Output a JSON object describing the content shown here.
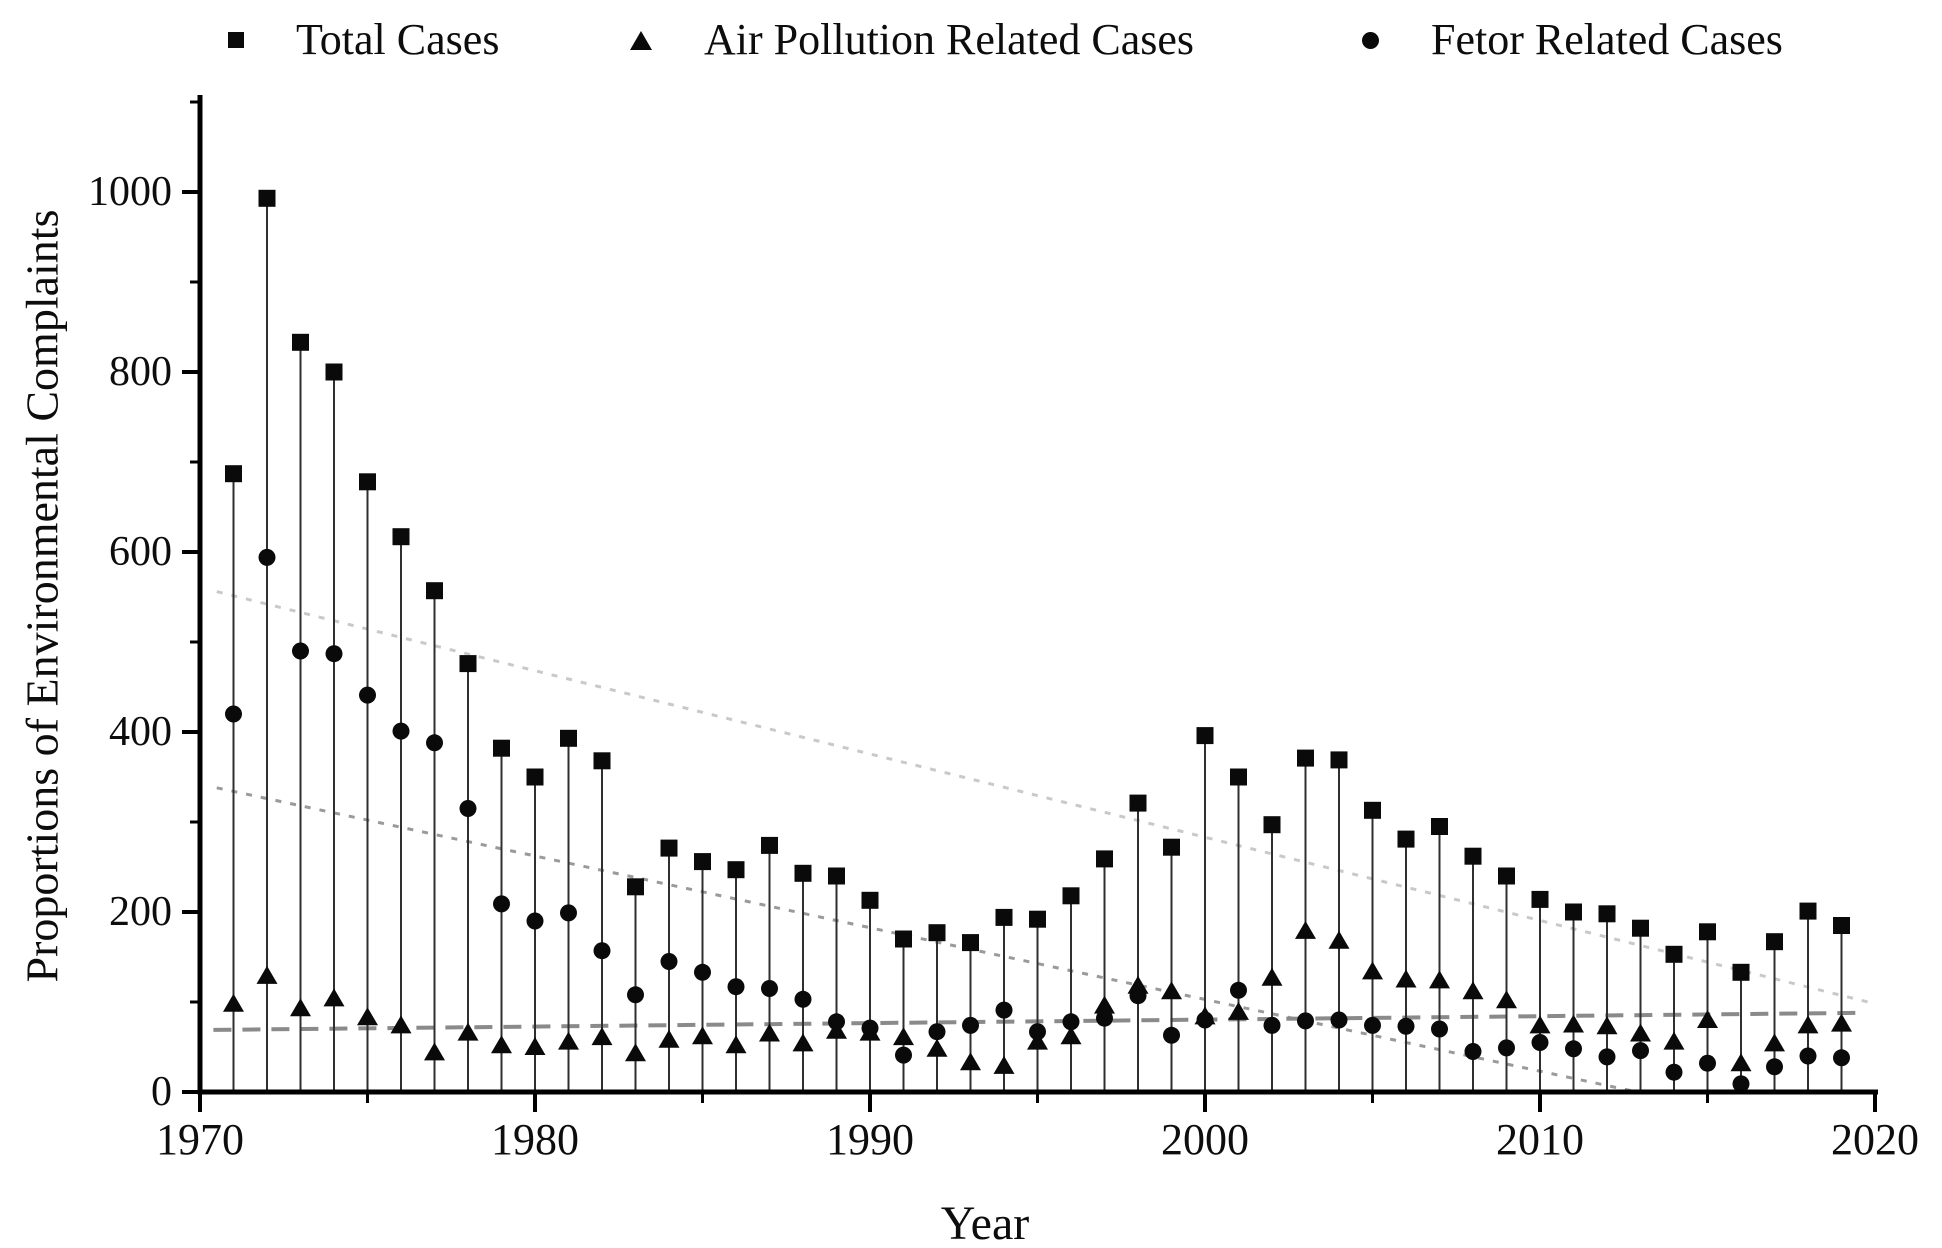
{
  "page": {
    "background": "#ffffff"
  },
  "legend": {
    "items": [
      {
        "marker": "square",
        "label": "Total Cases"
      },
      {
        "marker": "triangle",
        "label": "Air Pollution Related Cases"
      },
      {
        "marker": "circle",
        "label": "Fetor Related Cases"
      }
    ]
  },
  "axes": {
    "x": {
      "label": "Year",
      "min": 1970,
      "max": 2020,
      "major_ticks": [
        1970,
        1980,
        1990,
        2000,
        2010,
        2020
      ],
      "minor_ticks": [
        1975,
        1985,
        1995,
        2005,
        2015
      ]
    },
    "y": {
      "label": "Proportions of Environmental Complaints",
      "min": 0,
      "max": 1100,
      "major_ticks": [
        0,
        200,
        400,
        600,
        800,
        1000
      ],
      "minor_ticks": [
        100,
        300,
        500,
        700,
        900,
        1100
      ]
    }
  },
  "chart_data": {
    "type": "scatter",
    "subtype": "stem-scatter",
    "title": "",
    "xlabel": "Year",
    "ylabel": "Proportions of Environmental Complaints",
    "xlim": [
      1970,
      2020.4
    ],
    "ylim": [
      0,
      1105
    ],
    "grid": false,
    "legend_position": "top",
    "stems": true,
    "x": [
      1971,
      1972,
      1973,
      1974,
      1975,
      1976,
      1977,
      1978,
      1979,
      1980,
      1981,
      1982,
      1983,
      1984,
      1985,
      1986,
      1987,
      1988,
      1989,
      1990,
      1991,
      1992,
      1993,
      1994,
      1995,
      1996,
      1997,
      1998,
      1999,
      2000,
      2001,
      2002,
      2003,
      2004,
      2005,
      2006,
      2007,
      2008,
      2009,
      2010,
      2011,
      2012,
      2013,
      2014,
      2015,
      2016,
      2017,
      2018,
      2019
    ],
    "series": [
      {
        "name": "Total Cases",
        "marker": "square",
        "color": "#0a0a0a",
        "values": [
          687,
          993,
          833,
          800,
          678,
          617,
          557,
          476,
          382,
          350,
          393,
          368,
          228,
          271,
          256,
          247,
          274,
          243,
          240,
          213,
          170,
          177,
          166,
          194,
          192,
          218,
          259,
          321,
          272,
          396,
          350,
          297,
          371,
          369,
          313,
          281,
          295,
          262,
          240,
          214,
          200,
          198,
          182,
          153,
          178,
          133,
          167,
          201,
          185
        ]
      },
      {
        "name": "Air Pollution Related Cases",
        "marker": "triangle",
        "color": "#0a0a0a",
        "values": [
          98,
          129,
          93,
          104,
          83,
          74,
          44,
          66,
          52,
          50,
          56,
          61,
          43,
          58,
          62,
          52,
          65,
          54,
          68,
          66,
          61,
          48,
          33,
          29,
          56,
          62,
          96,
          118,
          112,
          84,
          89,
          127,
          179,
          168,
          134,
          125,
          124,
          112,
          102,
          74,
          75,
          73,
          65,
          56,
          80,
          32,
          54,
          74,
          76
        ]
      },
      {
        "name": "Fetor Related Cases",
        "marker": "circle",
        "color": "#0a0a0a",
        "values": [
          420,
          594,
          490,
          487,
          441,
          401,
          388,
          315,
          209,
          190,
          199,
          157,
          108,
          145,
          133,
          117,
          115,
          103,
          78,
          71,
          41,
          67,
          74,
          91,
          67,
          78,
          82,
          107,
          63,
          80,
          113,
          74,
          79,
          80,
          74,
          73,
          70,
          45,
          49,
          55,
          48,
          39,
          46,
          22,
          32,
          9,
          28,
          40,
          38
        ]
      }
    ],
    "trend_lines": [
      {
        "series": "Total Cases",
        "style": "dotted",
        "color": "#c9c9c9",
        "from": {
          "x": 1970.5,
          "y": 556
        },
        "to": {
          "x": 2019.9,
          "y": 99
        }
      },
      {
        "series": "Fetor Related Cases",
        "style": "dotted",
        "color": "#9a9a9a",
        "from": {
          "x": 1970.5,
          "y": 338
        },
        "to": {
          "x": 2012.9,
          "y": 0
        }
      },
      {
        "series": "Air Pollution Related Cases",
        "style": "dashed",
        "color": "#8a8a8a",
        "from": {
          "x": 1970.4,
          "y": 69
        },
        "to": {
          "x": 2019.7,
          "y": 88
        }
      }
    ]
  },
  "colors": {
    "marker": "#0a0a0a",
    "stem": "#2f2f2f",
    "axis": "#000000",
    "tick_label": "#0d0d0d"
  }
}
